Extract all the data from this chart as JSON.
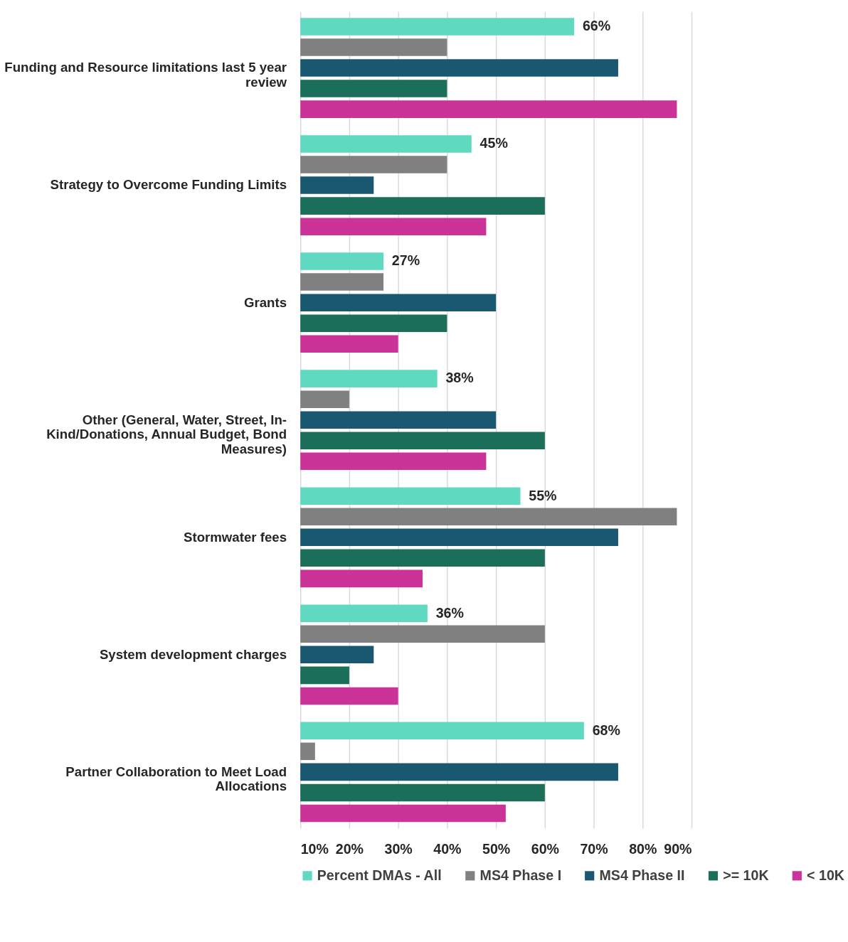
{
  "chart_data": {
    "type": "bar",
    "orientation": "horizontal",
    "categories": [
      "Funding and Resource limitations last 5 year review",
      "Strategy to Overcome Funding Limits",
      "Grants",
      "Other (General, Water, Street, In-Kind/Donations, Annual Budget, Bond Measures)",
      "Stormwater fees",
      "System development charges",
      "Partner Collaboration to Meet Load Allocations"
    ],
    "series": [
      {
        "name": "Percent DMAs - All",
        "color": "#5fd9c0",
        "values": [
          66,
          45,
          27,
          38,
          55,
          36,
          68
        ],
        "value_labels": [
          "66%",
          "45%",
          "27%",
          "38%",
          "55%",
          "36%",
          "68%"
        ]
      },
      {
        "name": "MS4 Phase I",
        "color": "#808080",
        "values": [
          40,
          40,
          27,
          20,
          87,
          60,
          13
        ]
      },
      {
        "name": "MS4 Phase II",
        "color": "#1a5872",
        "values": [
          75,
          25,
          50,
          50,
          75,
          25,
          75
        ]
      },
      {
        "name": ">= 10K",
        "color": "#1b6e5a",
        "values": [
          40,
          60,
          40,
          60,
          60,
          20,
          60
        ]
      },
      {
        "name": "< 10K",
        "color": "#cc3399",
        "values": [
          87,
          48,
          30,
          48,
          35,
          30,
          52
        ]
      }
    ],
    "xlim": [
      10,
      90
    ],
    "xticks": [
      {
        "value": 10,
        "label": "10%"
      },
      {
        "value": 20,
        "label": "20%"
      },
      {
        "value": 30,
        "label": "30%"
      },
      {
        "value": 40,
        "label": "40%"
      },
      {
        "value": 50,
        "label": "50%"
      },
      {
        "value": 60,
        "label": "60%"
      },
      {
        "value": 70,
        "label": "70%"
      },
      {
        "value": 80,
        "label": "80%"
      },
      {
        "value": 90,
        "label": "90%"
      }
    ],
    "grid": "x",
    "legend": "bottom"
  }
}
